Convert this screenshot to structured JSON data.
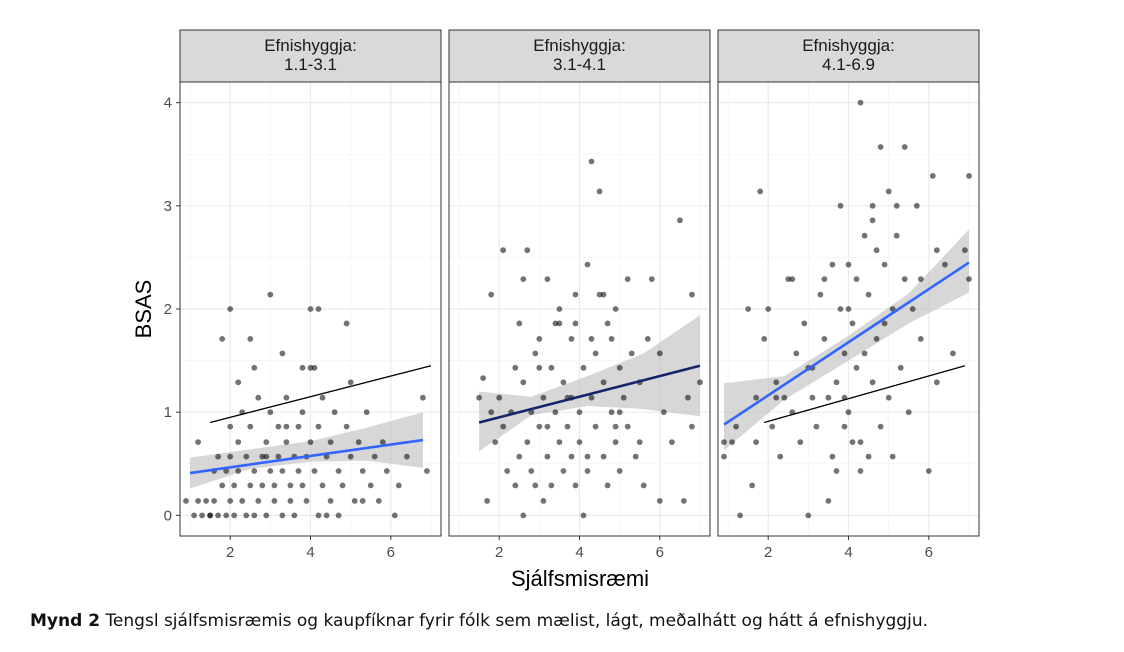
{
  "caption": {
    "label": "Mynd 2",
    "text": "Tengsl sjálfsmisræmis og kaupfíknar fyrir fólk sem mælist, lágt, meðalhátt og hátt á efnishyggju."
  },
  "chart_data": {
    "type": "scatter",
    "xlabel": "Sjálfsmisræmi",
    "ylabel": "BSAS",
    "xlim": [
      0.75,
      7.25
    ],
    "ylim": [
      -0.2,
      4.2
    ],
    "x_ticks": [
      2,
      4,
      6
    ],
    "y_ticks": [
      0,
      1,
      2,
      3,
      4
    ],
    "grid": true,
    "colors": {
      "points": "#000000",
      "fit_line": "#3366ff",
      "ref_line": "#000000",
      "ribbon": "#bdbdbd",
      "strip_fill": "#d9d9d9",
      "panel_border": "#333333",
      "grid": "#ebebeb"
    },
    "panels": [
      {
        "strip": [
          "Efnishyggja:",
          "1.1-3.1"
        ],
        "fit": {
          "x": [
            1.0,
            6.8
          ],
          "y": [
            0.41,
            0.73
          ]
        },
        "band": {
          "x": [
            1.0,
            2.5,
            4.0,
            5.4,
            6.8
          ],
          "lower": [
            0.26,
            0.45,
            0.52,
            0.53,
            0.46
          ],
          "upper": [
            0.56,
            0.64,
            0.72,
            0.85,
            1.0
          ]
        },
        "reference": {
          "x": [
            1.5,
            7.0
          ],
          "y": [
            0.9,
            1.45
          ]
        },
        "points": [
          [
            0.9,
            0.14
          ],
          [
            1.1,
            0.0
          ],
          [
            1.2,
            0.14
          ],
          [
            1.3,
            0.0
          ],
          [
            1.4,
            0.14
          ],
          [
            1.5,
            0.0
          ],
          [
            1.6,
            0.43
          ],
          [
            1.6,
            0.14
          ],
          [
            1.7,
            0.57
          ],
          [
            1.8,
            0.29
          ],
          [
            1.9,
            0.0
          ],
          [
            1.9,
            0.43
          ],
          [
            2.0,
            0.14
          ],
          [
            2.0,
            0.86
          ],
          [
            2.0,
            0.57
          ],
          [
            2.1,
            0.0
          ],
          [
            2.1,
            0.29
          ],
          [
            2.2,
            0.71
          ],
          [
            2.2,
            0.43
          ],
          [
            2.3,
            0.14
          ],
          [
            2.3,
            1.0
          ],
          [
            2.4,
            0.0
          ],
          [
            2.4,
            0.57
          ],
          [
            2.5,
            0.29
          ],
          [
            2.5,
            0.86
          ],
          [
            2.6,
            0.43
          ],
          [
            2.6,
            0.0
          ],
          [
            2.7,
            1.14
          ],
          [
            2.7,
            0.14
          ],
          [
            2.8,
            0.57
          ],
          [
            2.8,
            0.29
          ],
          [
            2.9,
            0.71
          ],
          [
            2.9,
            0.0
          ],
          [
            3.0,
            0.43
          ],
          [
            3.0,
            1.0
          ],
          [
            3.1,
            0.14
          ],
          [
            3.1,
            0.29
          ],
          [
            3.2,
            0.57
          ],
          [
            3.2,
            0.86
          ],
          [
            3.3,
            0.0
          ],
          [
            3.3,
            0.43
          ],
          [
            3.4,
            0.71
          ],
          [
            3.4,
            1.14
          ],
          [
            3.5,
            0.29
          ],
          [
            3.5,
            0.14
          ],
          [
            3.6,
            0.57
          ],
          [
            3.7,
            0.86
          ],
          [
            3.7,
            0.43
          ],
          [
            3.8,
            1.0
          ],
          [
            3.8,
            0.29
          ],
          [
            3.9,
            0.57
          ],
          [
            3.9,
            0.14
          ],
          [
            4.0,
            1.43
          ],
          [
            4.0,
            0.71
          ],
          [
            4.1,
            0.43
          ],
          [
            4.2,
            0.0
          ],
          [
            4.2,
            0.86
          ],
          [
            4.3,
            0.29
          ],
          [
            4.3,
            1.14
          ],
          [
            4.4,
            0.57
          ],
          [
            4.5,
            0.14
          ],
          [
            4.5,
            0.71
          ],
          [
            4.6,
            1.0
          ],
          [
            4.7,
            0.43
          ],
          [
            4.7,
            0.0
          ],
          [
            4.8,
            0.29
          ],
          [
            4.9,
            0.86
          ],
          [
            5.0,
            0.57
          ],
          [
            5.0,
            1.29
          ],
          [
            5.1,
            0.14
          ],
          [
            5.2,
            0.71
          ],
          [
            5.3,
            0.43
          ],
          [
            5.4,
            1.0
          ],
          [
            5.5,
            0.29
          ],
          [
            5.6,
            0.57
          ],
          [
            5.7,
            0.14
          ],
          [
            5.8,
            0.71
          ],
          [
            5.9,
            0.43
          ],
          [
            6.1,
            0.0
          ],
          [
            6.2,
            0.29
          ],
          [
            6.4,
            0.57
          ],
          [
            6.8,
            1.14
          ],
          [
            6.9,
            0.43
          ],
          [
            1.2,
            0.71
          ],
          [
            1.8,
            1.71
          ],
          [
            2.0,
            2.0
          ],
          [
            2.2,
            1.29
          ],
          [
            2.5,
            1.71
          ],
          [
            3.0,
            2.14
          ],
          [
            3.3,
            1.57
          ],
          [
            3.8,
            1.43
          ],
          [
            4.0,
            2.0
          ],
          [
            4.2,
            2.0
          ],
          [
            4.9,
            1.86
          ],
          [
            2.6,
            1.43
          ],
          [
            1.5,
            0.0
          ],
          [
            2.9,
            0.57
          ],
          [
            3.6,
            0.0
          ],
          [
            4.4,
            0.0
          ],
          [
            5.3,
            0.14
          ],
          [
            1.7,
            0.0
          ],
          [
            3.4,
            0.86
          ],
          [
            4.1,
            1.43
          ]
        ]
      },
      {
        "strip": [
          "Efnishyggja:",
          "3.1-4.1"
        ],
        "fit": {
          "x": [
            1.5,
            7.0
          ],
          "y": [
            0.9,
            1.45
          ]
        },
        "band": {
          "x": [
            1.5,
            2.8,
            4.2,
            5.6,
            7.0
          ],
          "lower": [
            0.62,
            0.97,
            1.06,
            1.03,
            0.96
          ],
          "upper": [
            1.2,
            1.15,
            1.35,
            1.57,
            1.94
          ]
        },
        "reference": null,
        "points": [
          [
            1.5,
            1.14
          ],
          [
            1.6,
            1.33
          ],
          [
            1.7,
            0.14
          ],
          [
            1.8,
            2.14
          ],
          [
            1.9,
            0.71
          ],
          [
            2.0,
            1.14
          ],
          [
            2.1,
            0.86
          ],
          [
            2.2,
            0.43
          ],
          [
            2.3,
            1.0
          ],
          [
            2.4,
            0.29
          ],
          [
            2.4,
            1.43
          ],
          [
            2.5,
            0.57
          ],
          [
            2.5,
            1.86
          ],
          [
            2.6,
            0.0
          ],
          [
            2.6,
            1.29
          ],
          [
            2.7,
            0.71
          ],
          [
            2.7,
            2.57
          ],
          [
            2.8,
            1.0
          ],
          [
            2.8,
            0.43
          ],
          [
            2.9,
            1.57
          ],
          [
            2.9,
            0.29
          ],
          [
            3.0,
            0.86
          ],
          [
            3.0,
            1.71
          ],
          [
            3.1,
            0.14
          ],
          [
            3.1,
            1.14
          ],
          [
            3.2,
            2.29
          ],
          [
            3.2,
            0.57
          ],
          [
            3.3,
            1.43
          ],
          [
            3.3,
            0.29
          ],
          [
            3.4,
            1.0
          ],
          [
            3.4,
            1.86
          ],
          [
            3.5,
            0.71
          ],
          [
            3.5,
            2.0
          ],
          [
            3.6,
            0.43
          ],
          [
            3.6,
            1.29
          ],
          [
            3.7,
            1.14
          ],
          [
            3.7,
            0.86
          ],
          [
            3.8,
            1.71
          ],
          [
            3.8,
            0.57
          ],
          [
            3.9,
            0.29
          ],
          [
            3.9,
            2.14
          ],
          [
            4.0,
            1.0
          ],
          [
            4.0,
            0.71
          ],
          [
            4.1,
            1.43
          ],
          [
            4.1,
            0.0
          ],
          [
            4.2,
            2.43
          ],
          [
            4.2,
            0.43
          ],
          [
            4.3,
            3.43
          ],
          [
            4.3,
            1.14
          ],
          [
            4.4,
            0.86
          ],
          [
            4.4,
            1.57
          ],
          [
            4.5,
            3.14
          ],
          [
            4.5,
            2.14
          ],
          [
            4.6,
            0.57
          ],
          [
            4.6,
            1.29
          ],
          [
            4.7,
            1.86
          ],
          [
            4.7,
            0.29
          ],
          [
            4.8,
            1.0
          ],
          [
            4.8,
            1.71
          ],
          [
            4.9,
            2.0
          ],
          [
            4.9,
            0.71
          ],
          [
            5.0,
            1.43
          ],
          [
            5.0,
            0.43
          ],
          [
            5.1,
            1.14
          ],
          [
            5.2,
            2.29
          ],
          [
            5.2,
            0.86
          ],
          [
            5.3,
            1.57
          ],
          [
            5.4,
            0.57
          ],
          [
            5.5,
            1.29
          ],
          [
            5.6,
            0.29
          ],
          [
            5.7,
            1.71
          ],
          [
            5.8,
            2.29
          ],
          [
            6.0,
            0.14
          ],
          [
            6.1,
            1.0
          ],
          [
            6.3,
            0.71
          ],
          [
            6.5,
            2.86
          ],
          [
            6.6,
            0.14
          ],
          [
            6.8,
            2.14
          ],
          [
            6.8,
            0.86
          ],
          [
            7.0,
            1.29
          ],
          [
            1.8,
            1.0
          ],
          [
            2.1,
            2.57
          ],
          [
            2.6,
            2.29
          ],
          [
            3.0,
            1.43
          ],
          [
            3.5,
            1.86
          ],
          [
            3.9,
            1.86
          ],
          [
            4.3,
            1.71
          ],
          [
            4.6,
            2.14
          ],
          [
            5.0,
            1.0
          ],
          [
            5.5,
            0.71
          ],
          [
            6.0,
            1.57
          ],
          [
            6.7,
            1.14
          ],
          [
            3.2,
            0.86
          ],
          [
            3.8,
            1.14
          ],
          [
            4.2,
            0.57
          ],
          [
            4.9,
            0.86
          ]
        ]
      },
      {
        "strip": [
          "Efnishyggja:",
          "4.1-6.9"
        ],
        "fit": {
          "x": [
            0.9,
            7.0
          ],
          "y": [
            0.88,
            2.45
          ]
        },
        "band": {
          "x": [
            0.9,
            2.4,
            4.0,
            5.5,
            7.0
          ],
          "lower": [
            0.63,
            1.12,
            1.5,
            1.86,
            2.16
          ],
          "upper": [
            1.28,
            1.35,
            1.74,
            2.15,
            2.77
          ]
        },
        "reference": {
          "x": [
            1.9,
            6.9
          ],
          "y": [
            0.9,
            1.45
          ]
        },
        "points": [
          [
            0.9,
            0.71
          ],
          [
            0.9,
            0.57
          ],
          [
            1.2,
            0.86
          ],
          [
            1.3,
            0.0
          ],
          [
            1.5,
            2.0
          ],
          [
            1.6,
            0.29
          ],
          [
            1.7,
            1.14
          ],
          [
            1.7,
            0.71
          ],
          [
            1.8,
            3.14
          ],
          [
            1.9,
            1.71
          ],
          [
            2.0,
            2.0
          ],
          [
            2.1,
            0.86
          ],
          [
            2.2,
            1.29
          ],
          [
            2.3,
            0.57
          ],
          [
            2.4,
            1.14
          ],
          [
            2.5,
            2.29
          ],
          [
            2.6,
            1.0
          ],
          [
            2.7,
            1.57
          ],
          [
            2.8,
            0.71
          ],
          [
            2.9,
            1.86
          ],
          [
            3.0,
            0.0
          ],
          [
            3.0,
            1.43
          ],
          [
            3.1,
            1.14
          ],
          [
            3.2,
            0.86
          ],
          [
            3.3,
            2.14
          ],
          [
            3.4,
            1.71
          ],
          [
            3.5,
            0.14
          ],
          [
            3.5,
            1.14
          ],
          [
            3.6,
            2.43
          ],
          [
            3.6,
            0.57
          ],
          [
            3.7,
            1.29
          ],
          [
            3.7,
            0.43
          ],
          [
            3.8,
            2.0
          ],
          [
            3.8,
            3.0
          ],
          [
            3.9,
            1.57
          ],
          [
            3.9,
            0.86
          ],
          [
            4.0,
            2.43
          ],
          [
            4.0,
            1.0
          ],
          [
            4.1,
            0.71
          ],
          [
            4.1,
            1.86
          ],
          [
            4.2,
            2.29
          ],
          [
            4.2,
            1.43
          ],
          [
            4.3,
            4.0
          ],
          [
            4.3,
            0.43
          ],
          [
            4.4,
            1.57
          ],
          [
            4.4,
            2.71
          ],
          [
            4.5,
            2.14
          ],
          [
            4.5,
            0.57
          ],
          [
            4.6,
            3.0
          ],
          [
            4.6,
            1.29
          ],
          [
            4.7,
            1.71
          ],
          [
            4.7,
            2.57
          ],
          [
            4.8,
            3.57
          ],
          [
            4.8,
            0.86
          ],
          [
            4.9,
            2.43
          ],
          [
            4.9,
            1.86
          ],
          [
            5.0,
            1.14
          ],
          [
            5.0,
            3.14
          ],
          [
            5.1,
            2.0
          ],
          [
            5.1,
            0.57
          ],
          [
            5.2,
            2.71
          ],
          [
            5.3,
            1.43
          ],
          [
            5.4,
            3.57
          ],
          [
            5.4,
            2.29
          ],
          [
            5.5,
            1.0
          ],
          [
            5.6,
            2.0
          ],
          [
            5.7,
            3.0
          ],
          [
            5.8,
            1.71
          ],
          [
            6.0,
            0.43
          ],
          [
            6.1,
            3.29
          ],
          [
            6.2,
            1.29
          ],
          [
            6.4,
            2.43
          ],
          [
            6.6,
            1.57
          ],
          [
            6.9,
            2.57
          ],
          [
            7.0,
            3.29
          ],
          [
            7.0,
            2.29
          ],
          [
            1.1,
            0.71
          ],
          [
            2.2,
            1.14
          ],
          [
            3.1,
            1.43
          ],
          [
            3.4,
            2.29
          ],
          [
            4.0,
            2.0
          ],
          [
            4.6,
            2.86
          ],
          [
            5.2,
            3.0
          ],
          [
            5.8,
            2.29
          ],
          [
            6.2,
            2.57
          ],
          [
            2.6,
            2.29
          ],
          [
            3.9,
            1.14
          ],
          [
            4.3,
            0.71
          ]
        ]
      }
    ]
  }
}
